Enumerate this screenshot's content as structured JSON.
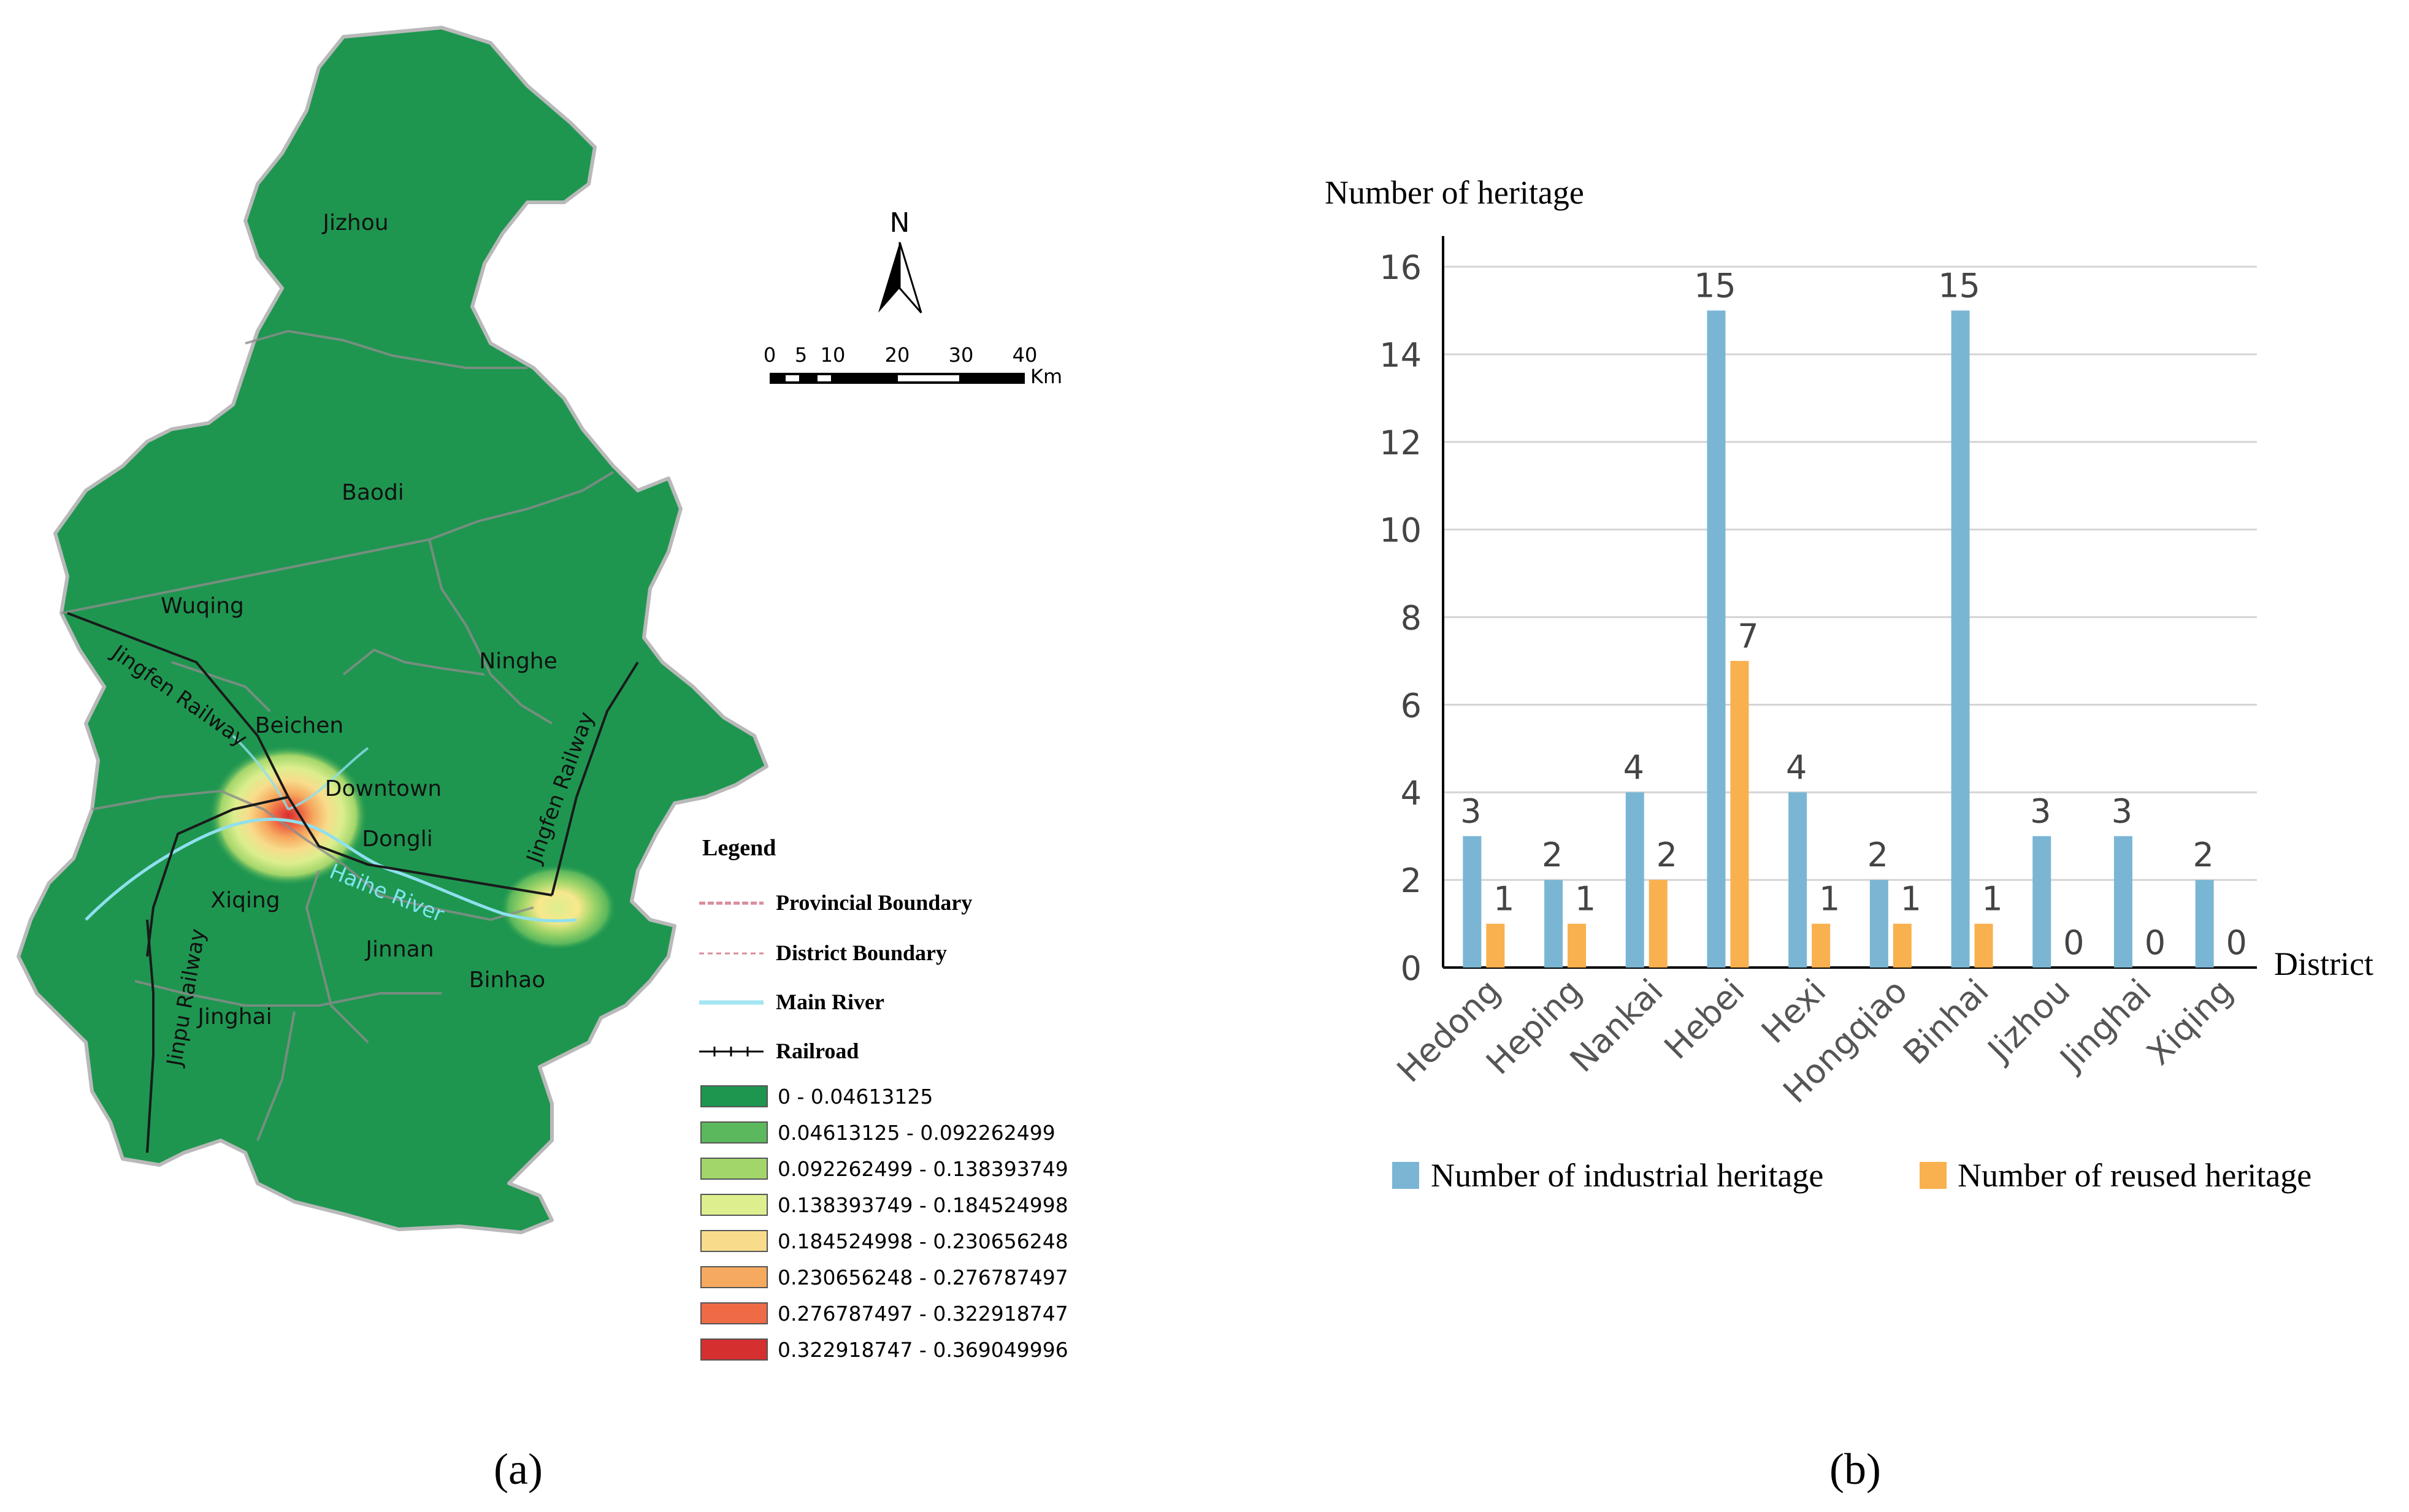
{
  "map": {
    "north_label": "N",
    "scale": {
      "ticks": [
        "0",
        "5",
        "10",
        "20",
        "30",
        "40"
      ],
      "unit": "Km"
    },
    "districts": [
      "Jizhou",
      "Baodi",
      "Wuqing",
      "Ninghe",
      "Beichen",
      "Downtown",
      "Dongli",
      "Xiqing",
      "Jinnan",
      "Binhao",
      "Jinghai"
    ],
    "line_labels": {
      "jingfen_rail_w": "Jingfen   Railway",
      "jingfen_rail_e": "Jingfen   Railway",
      "jinpu_rail": "Jinpu   Railway",
      "haihe_river": "Haihe   River"
    },
    "legend": {
      "title": "Legend",
      "lines": [
        "Provincial Boundary",
        "District Boundary",
        "Main River",
        "Railroad"
      ],
      "classes": [
        {
          "label": "0 - 0.04613125",
          "color": "#1e9650"
        },
        {
          "label": "0.04613125 - 0.092262499",
          "color": "#5bb85c"
        },
        {
          "label": "0.092262499 - 0.138393749",
          "color": "#a3d66a"
        },
        {
          "label": "0.138393749 - 0.184524998",
          "color": "#dcee8e"
        },
        {
          "label": "0.184524998 - 0.230656248",
          "color": "#f8dc8c"
        },
        {
          "label": "0.230656248 - 0.276787497",
          "color": "#f6aa5f"
        },
        {
          "label": "0.276787497 - 0.322918747",
          "color": "#ef6b45"
        },
        {
          "label": "0.322918747 - 0.369049996",
          "color": "#d62f2f"
        }
      ]
    },
    "caption": "(a)"
  },
  "chart_data": {
    "type": "bar",
    "ylabel": "Number of heritage",
    "xlabel": "District",
    "ylim": [
      0,
      16
    ],
    "yticks": [
      "0",
      "2",
      "4",
      "6",
      "8",
      "10",
      "12",
      "14",
      "16"
    ],
    "categories": [
      "Hedong",
      "Heping",
      "Nankai",
      "Hebei",
      "Hexi",
      "Hongqiao",
      "Binhai",
      "Jizhou",
      "Jinghai",
      "Xiqing"
    ],
    "series": [
      {
        "name": "Number of industrial heritage",
        "color": "#7ab6d4",
        "values": [
          3,
          2,
          4,
          15,
          4,
          2,
          15,
          3,
          3,
          2
        ]
      },
      {
        "name": "Number of reused heritage",
        "color": "#f9b04e",
        "values": [
          1,
          1,
          2,
          7,
          1,
          1,
          1,
          0,
          0,
          0
        ]
      }
    ],
    "caption": "(b)"
  }
}
